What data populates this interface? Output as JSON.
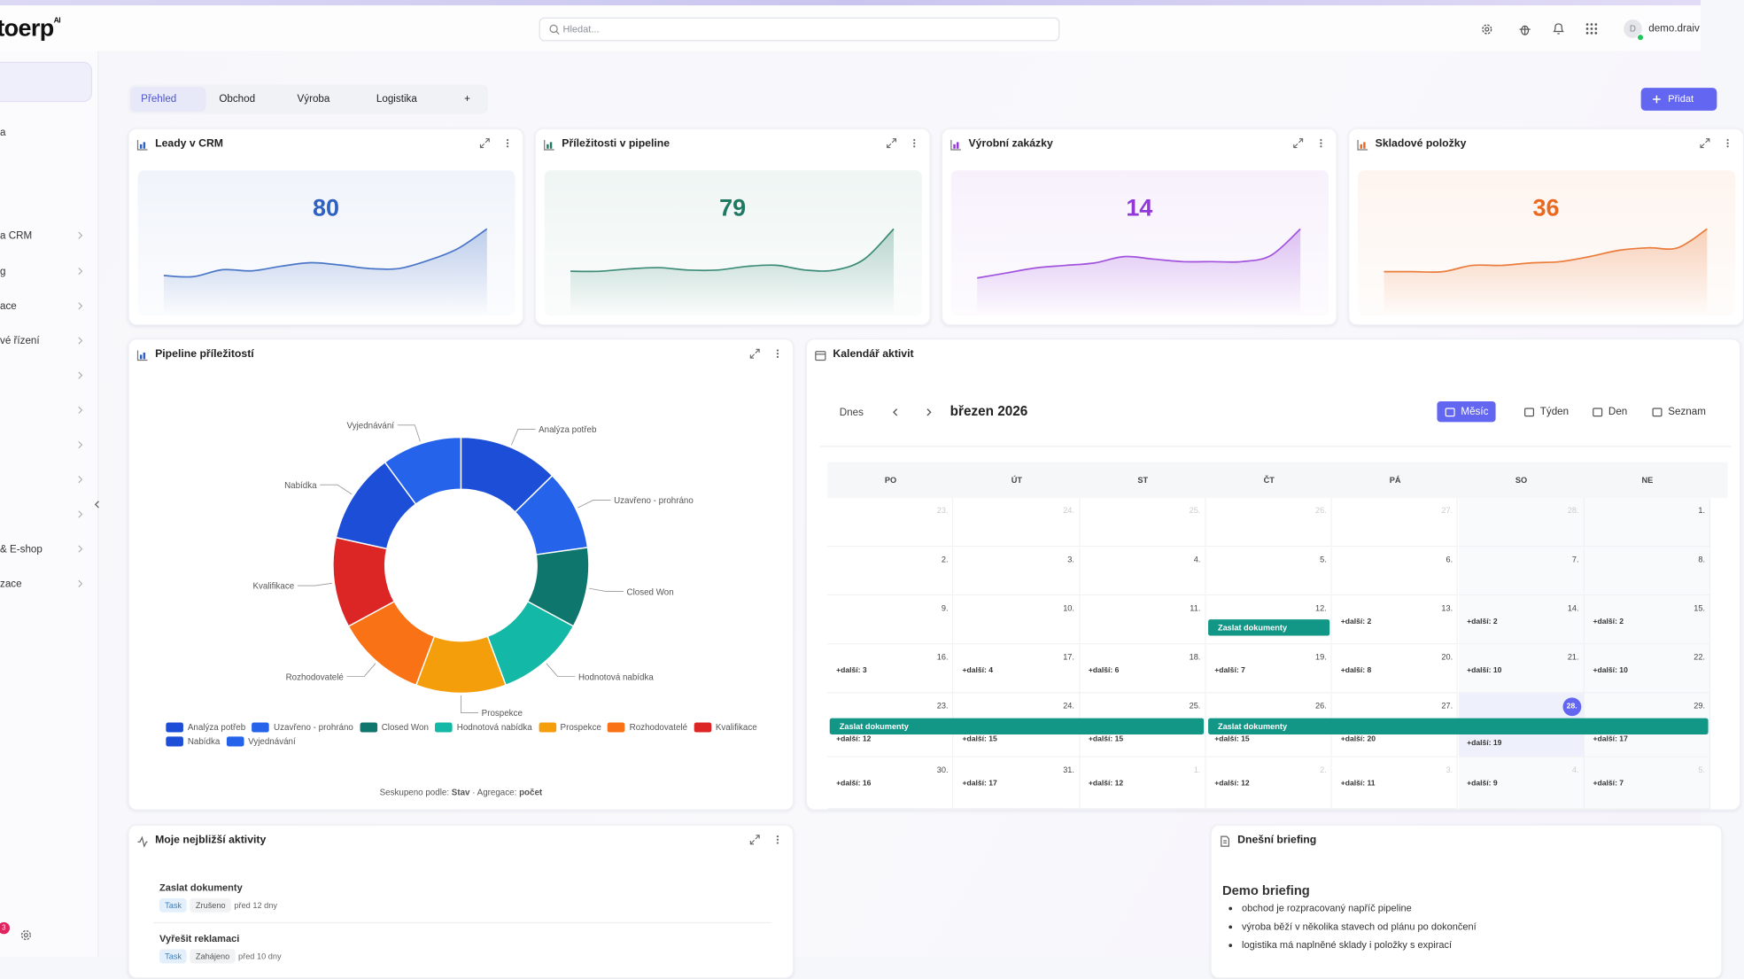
{
  "header": {
    "logo": "toerp",
    "logo_sup": "AI",
    "search_placeholder": "Hledat...",
    "avatar": "D",
    "user": "demo.draiv"
  },
  "sidebar": {
    "items": [
      "a",
      "a CRM",
      "g",
      "ace",
      "vé řízení",
      "& E-shop",
      "zace"
    ],
    "badge": "3"
  },
  "tabs": [
    "Přehled",
    "Obchod",
    "Výroba",
    "Logistika",
    "+"
  ],
  "add_button": "Přidat",
  "kpis": [
    {
      "title": "Leady v CRM",
      "value": 80,
      "color": "#2f62c0",
      "trend": [
        14,
        13,
        19,
        18,
        22,
        25,
        23,
        20,
        20,
        27,
        37,
        54
      ]
    },
    {
      "title": "Příležitosti v pipeline",
      "value": 79,
      "color": "#1f7a62",
      "trend": [
        17,
        17,
        19,
        20,
        18,
        18,
        21,
        22,
        18,
        18,
        27,
        52
      ]
    },
    {
      "title": "Výrobní zakázky",
      "value": 14,
      "color": "#9338d8",
      "trend": [
        11,
        15,
        19,
        21,
        23,
        28,
        26,
        24,
        24,
        24,
        29,
        50
      ]
    },
    {
      "title": "Skladové položky",
      "value": 36,
      "color": "#e8691f",
      "trend": [
        16,
        16,
        16,
        21,
        21,
        23,
        24,
        28,
        33,
        35,
        35,
        50
      ]
    }
  ],
  "pipeline": {
    "title": "Pipeline příležitostí",
    "chart": {
      "type": "donut",
      "categories": [
        "Analýza potřeb",
        "Uzavřeno - prohráno",
        "Closed Won",
        "Hodnotová nabídka",
        "Prospekce",
        "Rozhodovatelé",
        "Kvalifikace",
        "Nabídka",
        "Vyjednávání"
      ],
      "values": [
        10,
        8,
        8,
        9,
        9,
        9,
        9,
        9,
        8
      ],
      "colors": [
        "#1d4ed8",
        "#2563eb",
        "#0f766e",
        "#14b8a6",
        "#f59e0b",
        "#f97316",
        "#dc2626",
        "#1d4ed8",
        "#2563eb"
      ]
    },
    "footer": {
      "group_label": "Seskupeno podle:",
      "group_value": "Stav",
      "agg_label": "· Agregace:",
      "agg_value": "počet"
    }
  },
  "calendar": {
    "title": "Kalendář aktivit",
    "today_button": "Dnes",
    "month": "březen 2026",
    "views": [
      "Měsíc",
      "Týden",
      "Den",
      "Seznam"
    ],
    "weekdays": [
      "PO",
      "ÚT",
      "ST",
      "ČT",
      "PÁ",
      "SO",
      "NE"
    ],
    "today": "28.",
    "weeks": [
      {
        "cells": [
          {
            "day": "23.",
            "other_month": true
          },
          {
            "day": "24.",
            "other_month": true
          },
          {
            "day": "25.",
            "other_month": true
          },
          {
            "day": "26.",
            "other_month": true
          },
          {
            "day": "27.",
            "other_month": true
          },
          {
            "day": "28.",
            "other_month": true
          },
          {
            "day": "1."
          }
        ]
      },
      {
        "cells": [
          {
            "day": "2."
          },
          {
            "day": "3."
          },
          {
            "day": "4."
          },
          {
            "day": "5."
          },
          {
            "day": "6."
          },
          {
            "day": "7."
          },
          {
            "day": "8."
          }
        ]
      },
      {
        "cells": [
          {
            "day": "9."
          },
          {
            "day": "10."
          },
          {
            "day": "11."
          },
          {
            "day": "12."
          },
          {
            "day": "13.",
            "more": "+další: 2"
          },
          {
            "day": "14.",
            "more": "+další: 2"
          },
          {
            "day": "15.",
            "more": "+další: 2"
          }
        ],
        "events": [
          {
            "title": "Zaslat dokumenty",
            "start": "12.",
            "end": "12."
          }
        ]
      },
      {
        "cells": [
          {
            "day": "16.",
            "more": "+další: 3"
          },
          {
            "day": "17.",
            "more": "+další: 4"
          },
          {
            "day": "18.",
            "more": "+další: 6"
          },
          {
            "day": "19.",
            "more": "+další: 7"
          },
          {
            "day": "20.",
            "more": "+další: 8"
          },
          {
            "day": "21.",
            "more": "+další: 10"
          },
          {
            "day": "22.",
            "more": "+další: 10"
          }
        ]
      },
      {
        "cells": [
          {
            "day": "23.",
            "more": "+další: 12"
          },
          {
            "day": "24.",
            "more": "+další: 15"
          },
          {
            "day": "25.",
            "more": "+další: 15"
          },
          {
            "day": "26.",
            "more": "+další: 15"
          },
          {
            "day": "27.",
            "more": "+další: 20"
          },
          {
            "day": "28.",
            "more": "+další: 19"
          },
          {
            "day": "29.",
            "more": "+další: 17"
          }
        ],
        "events": [
          {
            "title": "Zaslat dokumenty",
            "start": "23.",
            "end": "25."
          },
          {
            "title": "Zaslat dokumenty",
            "start": "26.",
            "end": "29."
          }
        ]
      },
      {
        "cells": [
          {
            "day": "30.",
            "more": "+další: 16"
          },
          {
            "day": "31.",
            "more": "+další: 17"
          },
          {
            "day": "1.",
            "other_month": true,
            "more": "+další: 12"
          },
          {
            "day": "2.",
            "other_month": true,
            "more": "+další: 12"
          },
          {
            "day": "3.",
            "other_month": true,
            "more": "+další: 11"
          },
          {
            "day": "4.",
            "other_month": true,
            "more": "+další: 9"
          },
          {
            "day": "5.",
            "other_month": true,
            "more": "+další: 7"
          }
        ]
      }
    ]
  },
  "activities": {
    "title": "Moje nejbližší aktivity",
    "items": [
      {
        "title": "Zaslat dokumenty",
        "tag": "Task",
        "status": "Zrušeno",
        "time": "před 12 dny"
      },
      {
        "title": "Vyřešit reklamaci",
        "tag": "Task",
        "status": "Zahájeno",
        "time": "před 10 dny"
      }
    ]
  },
  "briefing": {
    "title": "Dnešní briefing",
    "heading": "Demo briefing",
    "bullets": [
      "obchod je rozpracovaný napříč pipeline",
      "výroba běží v několika stavech od plánu po dokončení",
      "logistika má naplněné sklady i položky s expirací"
    ]
  }
}
